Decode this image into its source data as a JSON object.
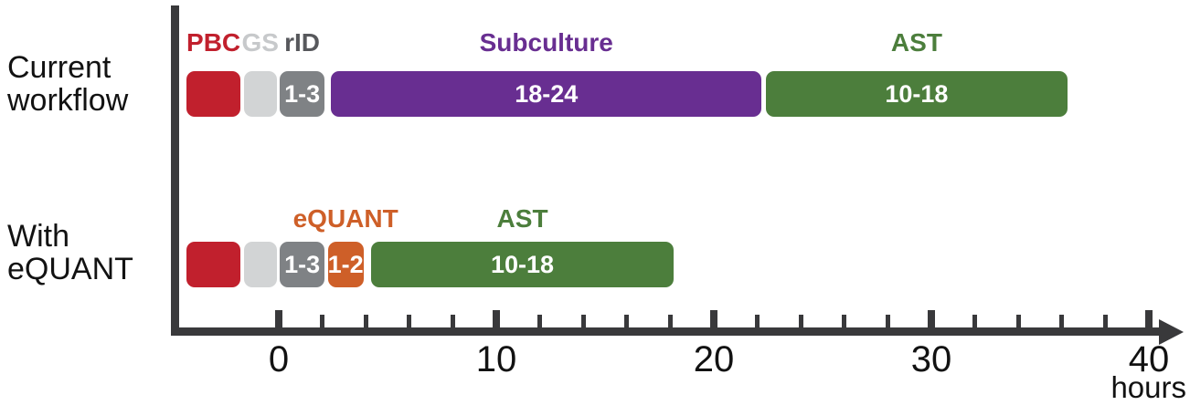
{
  "colors": {
    "axis": "#39393B",
    "text": "#121212",
    "bar_text": "#FFFFFF",
    "red": "#C1202D",
    "light_gray": "#D2D4D5",
    "dark_gray": "#7F8285",
    "purple": "#682E91",
    "green": "#4C7E3C",
    "orange": "#CE5F28"
  },
  "chart_data": {
    "type": "bar",
    "subtype": "workflow-timeline-gantt",
    "orientation": "horizontal",
    "title": "",
    "xlabel": "hours",
    "xlim": [
      -5,
      41.5
    ],
    "x_major_ticks": [
      0,
      10,
      20,
      30,
      40
    ],
    "x_minor_tick_step": 2,
    "grid": false,
    "rows": [
      {
        "label_lines": [
          "Current",
          "workflow"
        ],
        "segments": [
          {
            "name": "PBC",
            "top_label": "PBC",
            "top_label_color": "#C1202D",
            "start": -4.25,
            "end": -1.75,
            "color": "#C1202D",
            "duration_label": ""
          },
          {
            "name": "GS",
            "top_label": "GS",
            "top_label_color": "#C7C9CB",
            "start": -1.6,
            "end": -0.1,
            "color": "#D2D4D5",
            "duration_label": ""
          },
          {
            "name": "rID",
            "top_label": "rID",
            "top_label_color": "#57585C",
            "start": 0.05,
            "end": 2.1,
            "color": "#7F8285",
            "duration_label": "1-3"
          },
          {
            "name": "Subculture",
            "top_label": "Subculture",
            "top_label_color": "#682E91",
            "start": 2.4,
            "end": 22.2,
            "color": "#682E91",
            "duration_label": "18-24"
          },
          {
            "name": "AST",
            "top_label": "AST",
            "top_label_color": "#4C7E3C",
            "start": 22.4,
            "end": 36.25,
            "color": "#4C7E3C",
            "duration_label": "10-18"
          }
        ]
      },
      {
        "label_lines": [
          "With",
          "eQUANT"
        ],
        "segments": [
          {
            "name": "PBC",
            "start": -4.25,
            "end": -1.75,
            "color": "#C1202D",
            "duration_label": ""
          },
          {
            "name": "GS",
            "start": -1.6,
            "end": -0.1,
            "color": "#D2D4D5",
            "duration_label": ""
          },
          {
            "name": "rID",
            "start": 0.05,
            "end": 2.1,
            "color": "#7F8285",
            "duration_label": "1-3"
          },
          {
            "name": "eQUANT",
            "top_label": "eQUANT",
            "top_label_color": "#CE5F28",
            "start": 2.25,
            "end": 3.9,
            "color": "#CE5F28",
            "duration_label": "1-2"
          },
          {
            "name": "AST",
            "top_label": "AST",
            "top_label_color": "#4C7E3C",
            "start": 4.25,
            "end": 18.15,
            "color": "#4C7E3C",
            "duration_label": "10-18"
          }
        ]
      }
    ]
  }
}
